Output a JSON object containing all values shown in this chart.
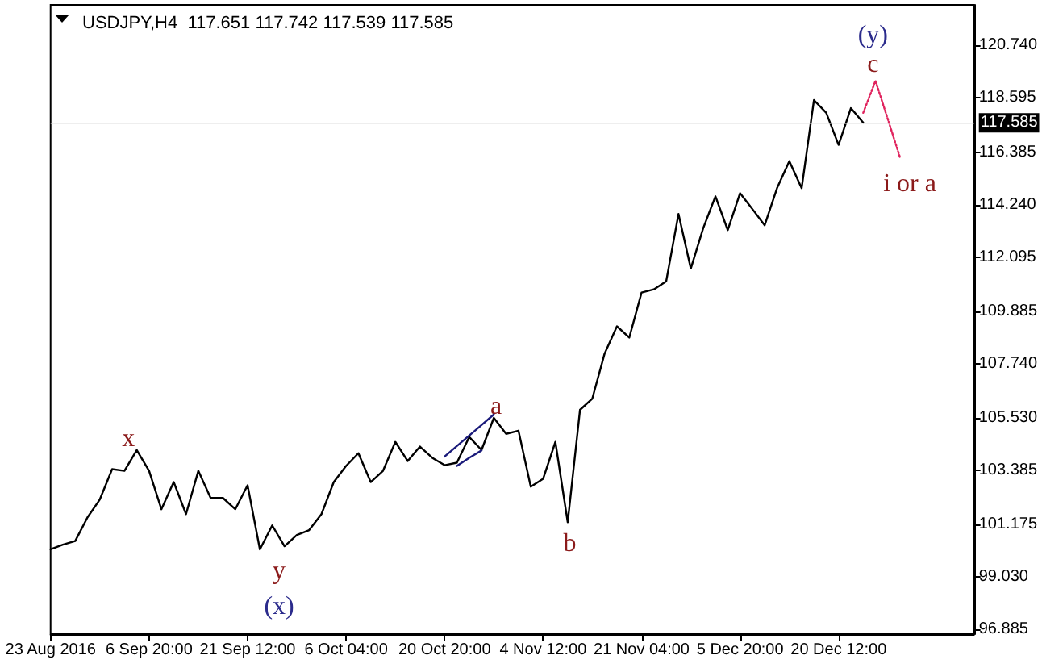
{
  "chart_data": {
    "type": "line",
    "title": "USDJPY,H4  117.651 117.742 117.539 117.585",
    "categories": [
      "23 Aug 2016",
      null,
      null,
      null,
      null,
      null,
      null,
      null,
      "6 Sep 20:00",
      null,
      null,
      null,
      null,
      null,
      null,
      null,
      "21 Sep 12:00",
      null,
      null,
      null,
      null,
      null,
      null,
      null,
      "6 Oct 04:00",
      null,
      null,
      null,
      null,
      null,
      null,
      null,
      "20 Oct 20:00",
      null,
      null,
      null,
      null,
      null,
      null,
      null,
      "4 Nov 12:00",
      null,
      null,
      null,
      null,
      null,
      null,
      null,
      "21 Nov 04:00",
      null,
      null,
      null,
      null,
      null,
      null,
      null,
      "5 Dec 20:00",
      null,
      null,
      null,
      null,
      null,
      null,
      null,
      "20 Dec 12:00",
      null,
      null,
      null,
      null,
      null,
      null,
      null,
      null,
      null,
      null,
      null
    ],
    "series": [
      {
        "color": "#000000",
        "values": [
          100.16,
          100.35,
          100.5,
          101.47,
          102.2,
          103.44,
          103.37,
          104.22,
          103.37,
          101.8,
          102.91,
          101.6,
          103.37,
          102.26,
          102.26,
          101.8,
          102.78,
          100.16,
          101.14,
          100.29,
          100.75,
          100.95,
          101.6,
          102.91,
          103.57,
          104.09,
          102.91,
          103.37,
          104.55,
          103.77,
          104.36,
          103.9,
          103.6,
          103.7,
          104.75,
          104.22,
          105.53,
          104.88,
          105.01,
          102.72,
          103.04,
          104.55,
          101.27,
          105.86,
          106.32,
          108.16,
          109.27,
          108.81,
          110.65,
          110.78,
          111.11,
          113.86,
          111.63,
          113.27,
          114.58,
          113.2,
          114.71,
          114.06,
          113.4,
          114.91,
          116.02,
          114.91,
          118.51,
          117.99,
          116.68,
          118.18,
          117.59,
          null,
          null,
          null,
          null,
          null,
          null,
          null,
          null,
          null
        ]
      },
      {
        "color": "#e0245e",
        "line_style": "dotted",
        "values": [
          null,
          null,
          null,
          null,
          null,
          null,
          null,
          null,
          null,
          null,
          null,
          null,
          null,
          null,
          null,
          null,
          null,
          null,
          null,
          null,
          null,
          null,
          null,
          null,
          null,
          null,
          null,
          null,
          null,
          null,
          null,
          null,
          null,
          null,
          null,
          null,
          null,
          null,
          null,
          null,
          null,
          null,
          null,
          null,
          null,
          null,
          null,
          null,
          null,
          null,
          null,
          null,
          null,
          null,
          null,
          null,
          null,
          null,
          null,
          null,
          null,
          null,
          null,
          null,
          null,
          null,
          117.99,
          119.3,
          117.73,
          116.15,
          null,
          null,
          null,
          null,
          null,
          null
        ]
      },
      {
        "color": "#1a1a7a",
        "values": [
          null,
          null,
          null,
          null,
          null,
          null,
          null,
          null,
          null,
          null,
          null,
          null,
          null,
          null,
          null,
          null,
          null,
          null,
          null,
          null,
          null,
          null,
          null,
          null,
          null,
          null,
          null,
          null,
          null,
          null,
          null,
          null,
          103.95,
          104.38,
          104.81,
          105.24,
          105.67,
          null,
          null,
          null,
          null,
          null,
          null,
          null,
          null,
          null,
          null,
          null,
          null,
          null,
          null,
          null,
          null,
          null,
          null,
          null,
          null,
          null,
          null,
          null,
          null,
          null,
          null,
          null,
          null,
          null,
          null,
          null,
          null,
          null,
          null,
          null,
          null,
          null,
          null,
          null
        ]
      },
      {
        "color": "#1a1a7a",
        "values": [
          null,
          null,
          null,
          null,
          null,
          null,
          null,
          null,
          null,
          null,
          null,
          null,
          null,
          null,
          null,
          null,
          null,
          null,
          null,
          null,
          null,
          null,
          null,
          null,
          null,
          null,
          null,
          null,
          null,
          null,
          null,
          null,
          null,
          103.57,
          103.9,
          104.2,
          null,
          null,
          null,
          null,
          null,
          null,
          null,
          null,
          null,
          null,
          null,
          null,
          null,
          null,
          null,
          null,
          null,
          null,
          null,
          null,
          null,
          null,
          null,
          null,
          null,
          null,
          null,
          null,
          null,
          null,
          null,
          null,
          null,
          null,
          null,
          null,
          null,
          null,
          null,
          null
        ]
      }
    ],
    "ylim": [
      96.7,
      122.4
    ],
    "yticks": [
      96.885,
      {
        "value": 99.03,
        "label": "99.030"
      },
      101.175,
      103.385,
      {
        "value": 105.53,
        "label": "105.530"
      },
      {
        "value": 107.74,
        "label": "107.740"
      },
      109.885,
      112.095,
      {
        "value": 114.24,
        "label": "114.240"
      },
      116.385,
      118.595,
      {
        "value": 120.74,
        "label": "120.740"
      }
    ],
    "ref_lines": [
      {
        "axis": "y",
        "value": 117.585,
        "label": "117.585"
      }
    ],
    "grid": false,
    "marker": "none",
    "annotations": [
      "x",
      "y",
      "(x)",
      "a",
      "b",
      "c",
      "(y)",
      "i or a"
    ]
  }
}
